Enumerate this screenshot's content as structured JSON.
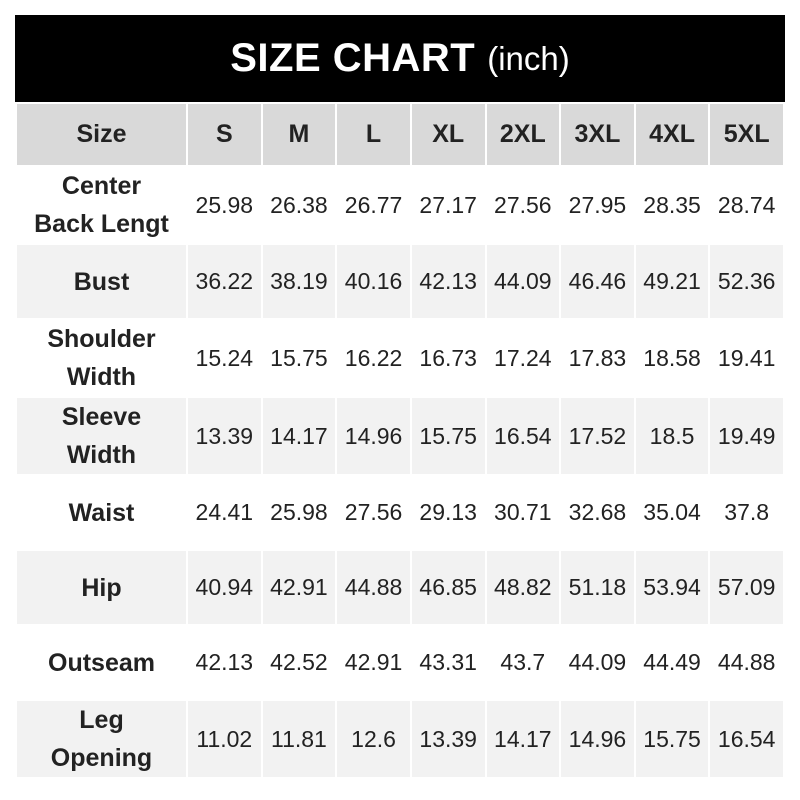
{
  "title": {
    "main": "SIZE CHART",
    "unit": "(inch)"
  },
  "header": [
    "Size",
    "S",
    "M",
    "L",
    "XL",
    "2XL",
    "3XL",
    "4XL",
    "5XL"
  ],
  "rows": [
    {
      "label": [
        "Center",
        "Back Lengt"
      ],
      "values": [
        "25.98",
        "26.38",
        "26.77",
        "27.17",
        "27.56",
        "27.95",
        "28.35",
        "28.74"
      ]
    },
    {
      "label": [
        "Bust"
      ],
      "values": [
        "36.22",
        "38.19",
        "40.16",
        "42.13",
        "44.09",
        "46.46",
        "49.21",
        "52.36"
      ]
    },
    {
      "label": [
        "Shoulder",
        "Width"
      ],
      "values": [
        "15.24",
        "15.75",
        "16.22",
        "16.73",
        "17.24",
        "17.83",
        "18.58",
        "19.41"
      ]
    },
    {
      "label": [
        "Sleeve",
        "Width"
      ],
      "values": [
        "13.39",
        "14.17",
        "14.96",
        "15.75",
        "16.54",
        "17.52",
        "18.5",
        "19.49"
      ]
    },
    {
      "label": [
        "Waist"
      ],
      "values": [
        "24.41",
        "25.98",
        "27.56",
        "29.13",
        "30.71",
        "32.68",
        "35.04",
        "37.8"
      ]
    },
    {
      "label": [
        "Hip"
      ],
      "values": [
        "40.94",
        "42.91",
        "44.88",
        "46.85",
        "48.82",
        "51.18",
        "53.94",
        "57.09"
      ]
    },
    {
      "label": [
        "Outseam"
      ],
      "values": [
        "42.13",
        "42.52",
        "42.91",
        "43.31",
        "43.7",
        "44.09",
        "44.49",
        "44.88"
      ]
    },
    {
      "label": [
        "Leg",
        "Opening"
      ],
      "values": [
        "11.02",
        "11.81",
        "12.6",
        "13.39",
        "14.17",
        "14.96",
        "15.75",
        "16.54"
      ]
    }
  ],
  "colors": {
    "title_bg": "#000000",
    "header_bg": "#d9d9d9",
    "alt_row_bg": "#f2f2f2"
  }
}
